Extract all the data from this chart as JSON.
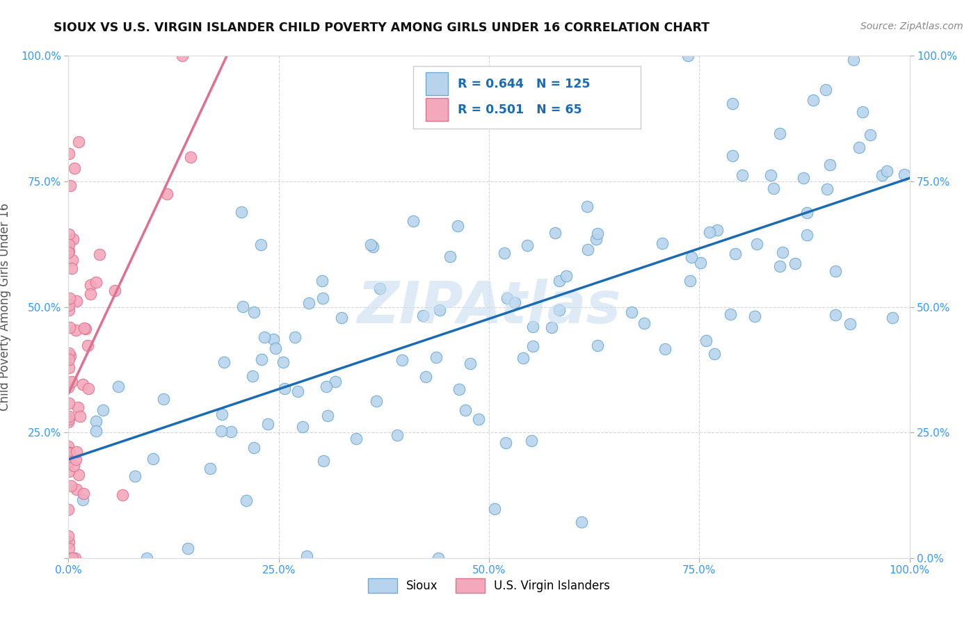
{
  "title": "SIOUX VS U.S. VIRGIN ISLANDER CHILD POVERTY AMONG GIRLS UNDER 16 CORRELATION CHART",
  "source": "Source: ZipAtlas.com",
  "ylabel": "Child Poverty Among Girls Under 16",
  "sioux_R": 0.644,
  "sioux_N": 125,
  "vi_R": 0.501,
  "vi_N": 65,
  "sioux_color": "#b8d4ed",
  "sioux_edge_color": "#6aaad4",
  "sioux_line_color": "#1a6bb5",
  "vi_color": "#f4a8bc",
  "vi_edge_color": "#e07090",
  "vi_line_color": "#e07090",
  "background_color": "#ffffff",
  "axis_tick_color": "#3399ff",
  "watermark_color": "#c8dff0",
  "xlim": [
    0.0,
    1.0
  ],
  "ylim": [
    0.0,
    1.0
  ],
  "xticks": [
    0.0,
    0.25,
    0.5,
    0.75,
    1.0
  ],
  "yticks": [
    0.0,
    0.25,
    0.5,
    0.75,
    1.0
  ],
  "xticklabels": [
    "0.0%",
    "25.0%",
    "50.0%",
    "75.0%",
    "100.0%"
  ],
  "left_yticklabels": [
    "",
    "25.0%",
    "50.0%",
    "75.0%",
    "100.0%"
  ],
  "right_yticklabels": [
    "0.0%",
    "25.0%",
    "50.0%",
    "75.0%",
    "100.0%"
  ]
}
